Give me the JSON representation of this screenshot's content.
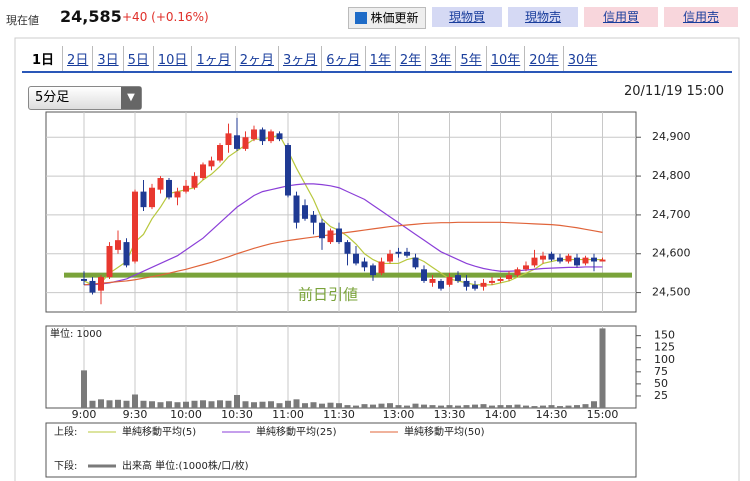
{
  "header": {
    "label": "現在値",
    "price": "24,585",
    "change": "+40 (+0.16%)"
  },
  "buttons": [
    "株価更新",
    "現物買",
    "現物売",
    "信用買",
    "信用売"
  ],
  "tabs": [
    "1日",
    "2日",
    "3日",
    "5日",
    "10日",
    "1ヶ月",
    "2ヶ月",
    "3ヶ月",
    "6ヶ月",
    "1年",
    "2年",
    "3年",
    "5年",
    "10年",
    "20年",
    "30年"
  ],
  "chart_data": {
    "type": "candlestick",
    "interval": "5分足",
    "date": "20/11/19 15:00",
    "categories": [
      "9:00",
      null,
      null,
      null,
      null,
      null,
      "9:30",
      null,
      null,
      null,
      null,
      null,
      "10:00",
      null,
      null,
      null,
      null,
      null,
      "10:30",
      null,
      null,
      null,
      null,
      null,
      "11:00",
      null,
      null,
      null,
      null,
      null,
      "11:30",
      null,
      null,
      null,
      null,
      null,
      null,
      "13:00",
      null,
      null,
      null,
      null,
      null,
      "13:30",
      null,
      null,
      null,
      null,
      null,
      "14:00",
      null,
      null,
      null,
      null,
      null,
      "14:30",
      null,
      null,
      null,
      null,
      null,
      "15:00"
    ],
    "open": [
      24535,
      24530,
      24505,
      24540,
      24610,
      24630,
      24580,
      24760,
      24720,
      24765,
      24790,
      24745,
      24760,
      24770,
      24795,
      24825,
      24840,
      24880,
      24905,
      24870,
      24895,
      24920,
      24890,
      24910,
      24880,
      24750,
      24725,
      24700,
      24680,
      24630,
      24665,
      24630,
      24600,
      24580,
      24570,
      24550,
      24580,
      24605,
      24605,
      24590,
      24560,
      24525,
      24530,
      24520,
      24545,
      24530,
      24520,
      24515,
      24525,
      24530,
      24535,
      24545,
      24560,
      24570,
      24585,
      24600,
      24590,
      24580,
      24590,
      24575,
      24590,
      24580
    ],
    "high": [
      24555,
      24540,
      24545,
      24630,
      24660,
      24640,
      24765,
      24790,
      24780,
      24800,
      24795,
      24770,
      24790,
      24810,
      24835,
      24850,
      24885,
      24935,
      24950,
      24915,
      24930,
      24925,
      24920,
      24915,
      24885,
      24760,
      24740,
      24710,
      24690,
      24665,
      24680,
      24635,
      24620,
      24590,
      24575,
      24590,
      24610,
      24615,
      24615,
      24600,
      24570,
      24545,
      24535,
      24550,
      24555,
      24545,
      24530,
      24535,
      24540,
      24540,
      24555,
      24565,
      24580,
      24610,
      24605,
      24605,
      24600,
      24600,
      24600,
      24595,
      24600,
      24590
    ],
    "low": [
      24520,
      24495,
      24470,
      24535,
      24600,
      24565,
      24575,
      24710,
      24715,
      24755,
      24740,
      24725,
      24755,
      24765,
      24790,
      24815,
      24835,
      24860,
      24865,
      24865,
      24890,
      24880,
      24885,
      24890,
      24745,
      24665,
      24685,
      24650,
      24610,
      24625,
      24625,
      24570,
      24570,
      24555,
      24530,
      24545,
      24575,
      24590,
      24590,
      24560,
      24525,
      24515,
      24505,
      24515,
      24525,
      24505,
      24505,
      24505,
      24520,
      24525,
      24530,
      24540,
      24555,
      24565,
      24575,
      24580,
      24575,
      24575,
      24565,
      24570,
      24555,
      24580
    ],
    "close": [
      24530,
      24500,
      24540,
      24620,
      24635,
      24570,
      24760,
      24720,
      24770,
      24795,
      24745,
      24760,
      24775,
      24800,
      24830,
      24840,
      24880,
      24910,
      24870,
      24900,
      24920,
      24890,
      24915,
      24895,
      24750,
      24680,
      24690,
      24680,
      24640,
      24660,
      24630,
      24600,
      24575,
      24565,
      24545,
      24580,
      24600,
      24600,
      24595,
      24565,
      24530,
      24535,
      24510,
      24540,
      24530,
      24515,
      24510,
      24525,
      24530,
      24535,
      24545,
      24560,
      24570,
      24590,
      24595,
      24585,
      24580,
      24595,
      24570,
      24590,
      24580,
      24585
    ],
    "up_color": "#e8382f",
    "down_color": "#1f3a93",
    "ylim": [
      24450,
      24965
    ],
    "yticks": [
      {
        "value": 24500,
        "label": "24,500"
      },
      {
        "value": 24600,
        "label": "24,600"
      },
      {
        "value": 24700,
        "label": "24,700"
      },
      {
        "value": 24800,
        "label": "24,800"
      },
      {
        "value": 24900,
        "label": "24,900"
      }
    ],
    "grid": true,
    "series": [
      {
        "name": "単純移動平均(5)",
        "color": "#b8c83e",
        "values": [
          24530,
          24520,
          24525,
          24550,
          24565,
          24580,
          24630,
          24650,
          24690,
          24720,
          24755,
          24760,
          24765,
          24770,
          24790,
          24805,
          24825,
          24850,
          24865,
          24880,
          24895,
          24895,
          24900,
          24905,
          24865,
          24820,
          24780,
          24740,
          24690,
          24670,
          24660,
          24645,
          24625,
          24600,
          24585,
          24575,
          24575,
          24575,
          24585,
          24590,
          24580,
          24565,
          24550,
          24535,
          24530,
          24525,
          24520,
          24520,
          24520,
          24525,
          24530,
          24540,
          24550,
          24560,
          24575,
          24580,
          24585,
          24585,
          24585,
          24585,
          24585,
          24585
        ]
      },
      {
        "name": "単純移動平均(25)",
        "color": "#8b3fd8",
        "values": [
          24520,
          24520,
          24522,
          24525,
          24530,
          24535,
          24545,
          24555,
          24565,
          24575,
          24585,
          24595,
          24610,
          24625,
          24640,
          24660,
          24680,
          24700,
          24720,
          24735,
          24750,
          24760,
          24765,
          24770,
          24775,
          24778,
          24780,
          24780,
          24778,
          24775,
          24770,
          24760,
          24750,
          24740,
          24725,
          24710,
          24695,
          24680,
          24665,
          24650,
          24635,
          24620,
          24605,
          24595,
          24585,
          24575,
          24568,
          24562,
          24558,
          24555,
          24555,
          24556,
          24558,
          24560,
          24562,
          24563,
          24564,
          24565,
          24565,
          24566,
          24566,
          24566
        ]
      },
      {
        "name": "単純移動平均(50)",
        "color": "#e0643a",
        "values": [
          24520,
          24522,
          24524,
          24526,
          24528,
          24530,
          24533,
          24537,
          24541,
          24545,
          24550,
          24555,
          24560,
          24566,
          24572,
          24578,
          24585,
          24592,
          24600,
          24607,
          24614,
          24620,
          24626,
          24630,
          24634,
          24637,
          24640,
          24643,
          24646,
          24649,
          24652,
          24655,
          24658,
          24661,
          24664,
          24667,
          24670,
          24672,
          24674,
          24676,
          24678,
          24679,
          24680,
          24680,
          24681,
          24681,
          24681,
          24681,
          24681,
          24681,
          24680,
          24679,
          24678,
          24677,
          24676,
          24675,
          24673,
          24670,
          24667,
          24663,
          24659,
          24655
        ]
      }
    ],
    "prev_close": {
      "value": 24545,
      "label": "前日引値",
      "color": "#7aa33a"
    },
    "volume": {
      "unit_label": "単位: 1000",
      "color": "#7a7a7a",
      "ylim": [
        0,
        170
      ],
      "yticks": [
        25,
        50,
        75,
        100,
        125,
        150
      ],
      "values": [
        78,
        15,
        18,
        16,
        17,
        15,
        28,
        15,
        14,
        12,
        14,
        12,
        13,
        15,
        16,
        14,
        16,
        15,
        27,
        14,
        12,
        13,
        14,
        10,
        15,
        18,
        10,
        12,
        9,
        11,
        10,
        6,
        5,
        8,
        7,
        9,
        10,
        6,
        5,
        9,
        7,
        6,
        5,
        6,
        5,
        6,
        7,
        8,
        5,
        6,
        6,
        7,
        5,
        4,
        5,
        6,
        4,
        5,
        6,
        8,
        14,
        165
      ]
    },
    "legend": {
      "upper": "上段:",
      "lower": "下段:",
      "volume_name": "出来高 単位:(1000株/口/枚)"
    }
  }
}
